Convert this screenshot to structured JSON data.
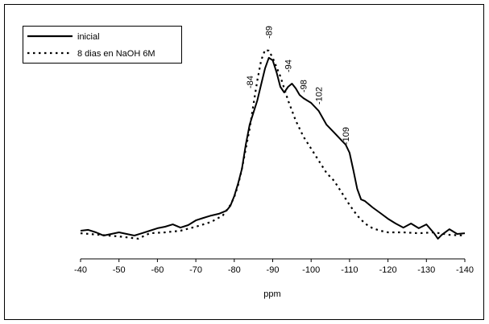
{
  "chart_data": {
    "type": "line",
    "x_label": "ppm",
    "xlim": [
      -40,
      -140
    ],
    "xticks": [
      -40,
      -50,
      -60,
      -70,
      -80,
      -90,
      -100,
      -110,
      -120,
      -130,
      -140
    ],
    "ylim": [
      0,
      100
    ],
    "legend": "top-left",
    "series": [
      {
        "name": "inicial",
        "color": "#000000",
        "dash": "solid",
        "x": [
          -40,
          -42,
          -44,
          -46,
          -48,
          -50,
          -52,
          -54,
          -56,
          -58,
          -60,
          -62,
          -64,
          -66,
          -68,
          -70,
          -72,
          -74,
          -76,
          -78,
          -79,
          -80,
          -81,
          -82,
          -83,
          -84,
          -85,
          -86,
          -87,
          -88,
          -89,
          -90,
          -91,
          -92,
          -93,
          -94,
          -95,
          -96,
          -97,
          -98,
          -100,
          -102,
          -104,
          -106,
          -108,
          -109,
          -110,
          -111,
          -112,
          -113,
          -114,
          -116,
          -118,
          -120,
          -122,
          -124,
          -126,
          -128,
          -130,
          -132,
          -133,
          -134,
          -136,
          -138,
          -140
        ],
        "values": [
          12.4,
          12.8,
          11.7,
          10.3,
          11.0,
          11.7,
          11.0,
          10.3,
          11.3,
          12.4,
          13.5,
          14.2,
          15.2,
          13.8,
          14.9,
          17.0,
          18.1,
          19.1,
          19.9,
          21.3,
          23.4,
          27.7,
          33.3,
          39.7,
          50.4,
          59.2,
          64.5,
          69.9,
          77.0,
          84.0,
          88.7,
          87.6,
          82.3,
          75.9,
          73.4,
          75.9,
          77.3,
          75.2,
          72.3,
          70.9,
          68.8,
          65.2,
          59.2,
          55.7,
          52.1,
          50.4,
          46.8,
          39.0,
          30.9,
          26.2,
          25.5,
          22.7,
          20.2,
          17.7,
          15.6,
          13.8,
          15.6,
          13.5,
          15.2,
          11.3,
          8.9,
          10.6,
          13.1,
          11.0,
          11.3
        ]
      },
      {
        "name": "8 dias en NaOH 6M",
        "color": "#000000",
        "dash": "dotted",
        "x": [
          -40,
          -45,
          -50,
          -55,
          -58,
          -62,
          -66,
          -70,
          -74,
          -77,
          -79,
          -80,
          -81,
          -82,
          -83,
          -84,
          -85,
          -86,
          -87,
          -88,
          -89,
          -90,
          -92,
          -94,
          -96,
          -98,
          -100,
          -102,
          -104,
          -106,
          -108,
          -110,
          -112,
          -114,
          -116,
          -118,
          -120,
          -124,
          -128,
          -132,
          -136,
          -140
        ],
        "values": [
          11.3,
          10.6,
          9.9,
          8.9,
          11.3,
          11.7,
          12.4,
          14.2,
          16.3,
          19.1,
          23.8,
          27.3,
          32.6,
          39.7,
          48.6,
          57.4,
          68.1,
          78.7,
          87.6,
          92.2,
          91.8,
          88.7,
          80.5,
          69.9,
          61.0,
          53.9,
          48.6,
          43.3,
          37.9,
          34.4,
          29.1,
          23.8,
          19.1,
          15.6,
          13.5,
          12.4,
          11.7,
          11.7,
          11.3,
          11.7,
          10.6,
          10.3
        ]
      }
    ],
    "annotations": [
      {
        "text": "-84",
        "x": -84
      },
      {
        "text": "-89",
        "x": -89
      },
      {
        "text": "-94",
        "x": -94
      },
      {
        "text": "-98",
        "x": -98
      },
      {
        "text": "-102",
        "x": -102
      },
      {
        "text": "-109",
        "x": -109
      }
    ]
  }
}
